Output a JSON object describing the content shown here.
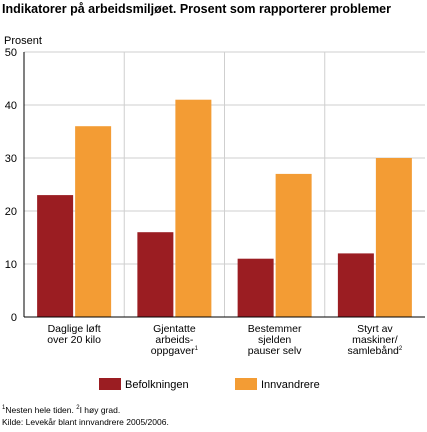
{
  "chart_data": {
    "type": "bar",
    "title": "Indikatorer på arbeidsmiljøet. Prosent som rapporterer problemer",
    "ylabel": "Prosent",
    "ylim": [
      0,
      50
    ],
    "yticks": [
      "0",
      "10",
      "20",
      "30",
      "40",
      "50"
    ],
    "grid": true,
    "legend_position": "bottom",
    "categories": [
      {
        "lines": [
          "Daglige løft",
          "over 20 kilo"
        ],
        "sup": ""
      },
      {
        "lines": [
          "Gjentatte",
          "arbeids-",
          "oppgaver"
        ],
        "sup": "1"
      },
      {
        "lines": [
          "Bestemmer",
          "sjelden",
          "pauser selv"
        ],
        "sup": ""
      },
      {
        "lines": [
          "Styrt av",
          "maskiner/",
          "samlebånd"
        ],
        "sup": "2"
      }
    ],
    "series": [
      {
        "name": "Befolkningen",
        "color": "#9b1d22",
        "values": [
          23,
          16,
          11,
          12
        ]
      },
      {
        "name": "Innvandrere",
        "color": "#f39c34",
        "values": [
          36,
          41,
          27,
          30
        ]
      }
    ]
  },
  "footnotes": {
    "line1_sup1": "1",
    "line1_text1": "Nesten hele tiden. ",
    "line1_sup2": "2",
    "line1_text2": "I høy grad.",
    "source": "Kilde: Levekår blant innvandrere 2005/2006."
  }
}
